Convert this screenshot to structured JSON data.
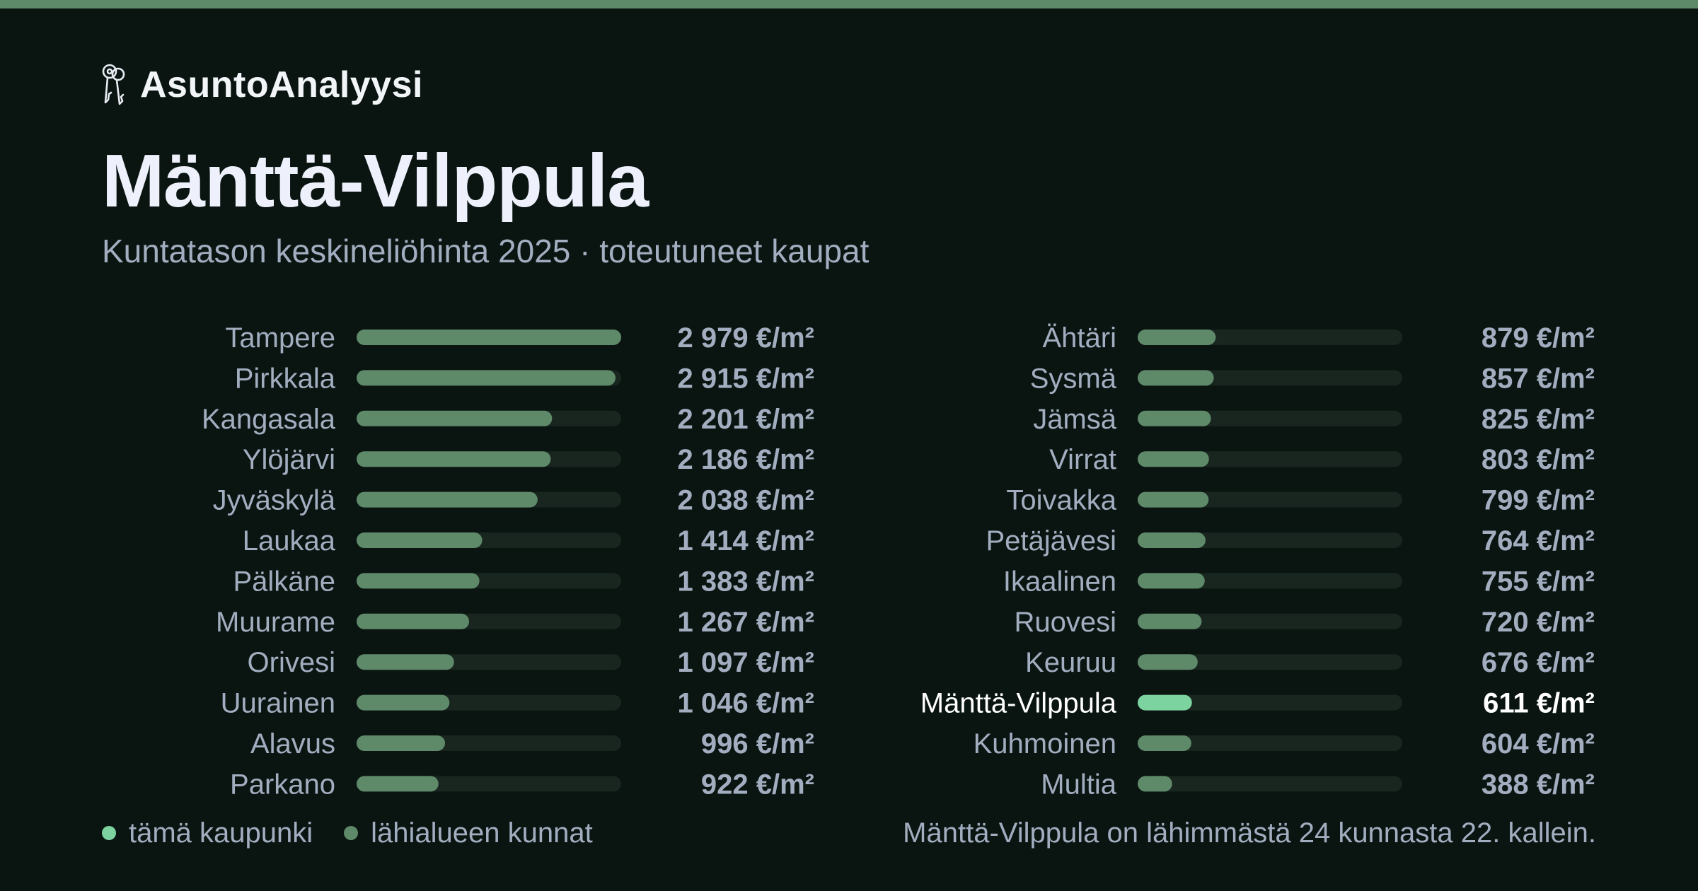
{
  "brand": {
    "name": "AsuntoAnalyysi",
    "icon": "keys-icon"
  },
  "header": {
    "title": "Mänttä-Vilppula",
    "subtitle": "Kuntatason keskineliöhinta 2025 · toteutuneet kaupat"
  },
  "colors": {
    "background": "#0a1512",
    "accent_bar": "#5f8a6a",
    "bar_regular": "#5f8a6a",
    "bar_highlight": "#7dd3a0",
    "track": "#18261f",
    "label": "#a2aec0",
    "label_highlight": "#ffffff",
    "value": "#a2aec0"
  },
  "chart_data": {
    "type": "bar",
    "orientation": "horizontal",
    "unit": "€/m²",
    "xlim": [
      0,
      2979
    ],
    "highlight": "Mänttä-Vilppula",
    "categories": [
      "Tampere",
      "Pirkkala",
      "Kangasala",
      "Ylöjärvi",
      "Jyväskylä",
      "Laukaa",
      "Pälkäne",
      "Muurame",
      "Orivesi",
      "Uurainen",
      "Alavus",
      "Parkano",
      "Ähtäri",
      "Sysmä",
      "Jämsä",
      "Virrat",
      "Toivakka",
      "Petäjävesi",
      "Ikaalinen",
      "Ruovesi",
      "Keuruu",
      "Mänttä-Vilppula",
      "Kuhmoinen",
      "Multia"
    ],
    "values": [
      2979,
      2915,
      2201,
      2186,
      2038,
      1414,
      1383,
      1267,
      1097,
      1046,
      996,
      922,
      879,
      857,
      825,
      803,
      799,
      764,
      755,
      720,
      676,
      611,
      604,
      388
    ],
    "value_labels": [
      "2 979 €/m²",
      "2 915 €/m²",
      "2 201 €/m²",
      "2 186 €/m²",
      "2 038 €/m²",
      "1 414 €/m²",
      "1 383 €/m²",
      "1 267 €/m²",
      "1 097 €/m²",
      "1 046 €/m²",
      "996 €/m²",
      "922 €/m²",
      "879 €/m²",
      "857 €/m²",
      "825 €/m²",
      "803 €/m²",
      "799 €/m²",
      "764 €/m²",
      "755 €/m²",
      "720 €/m²",
      "676 €/m²",
      "611 €/m²",
      "604 €/m²",
      "388 €/m²"
    ],
    "legend": [
      {
        "label": "tämä kaupunki",
        "color": "#7dd3a0"
      },
      {
        "label": "lähialueen kunnat",
        "color": "#5f8a6a"
      }
    ]
  },
  "footnote": "Mänttä-Vilppula on lähimmästä 24 kunnasta 22. kallein."
}
